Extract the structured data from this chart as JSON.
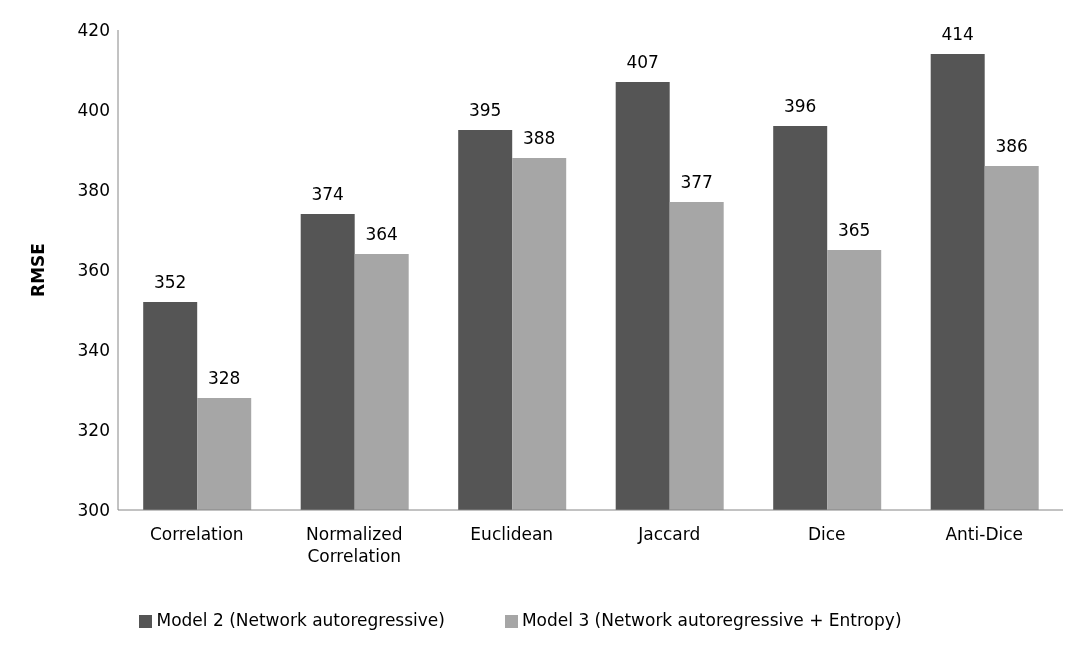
{
  "chart_data": {
    "type": "bar",
    "ylabel": "RMSE",
    "categories": [
      "Correlation",
      "Normalized Correlation",
      "Euclidean",
      "Jaccard",
      "Dice",
      "Anti-Dice"
    ],
    "series": [
      {
        "name": "Model 2 (Network autoregressive)",
        "color": "#555555",
        "values": [
          352,
          374,
          395,
          407,
          396,
          414
        ]
      },
      {
        "name": "Model 3 (Network autoregressive + Entropy)",
        "color": "#a6a6a6",
        "values": [
          328,
          364,
          388,
          377,
          365,
          386
        ]
      }
    ],
    "ylim": [
      300,
      420
    ],
    "yticks": [
      300,
      320,
      340,
      360,
      380,
      400,
      420
    ],
    "grid": false,
    "legend": "bottom",
    "data_labels": true
  }
}
